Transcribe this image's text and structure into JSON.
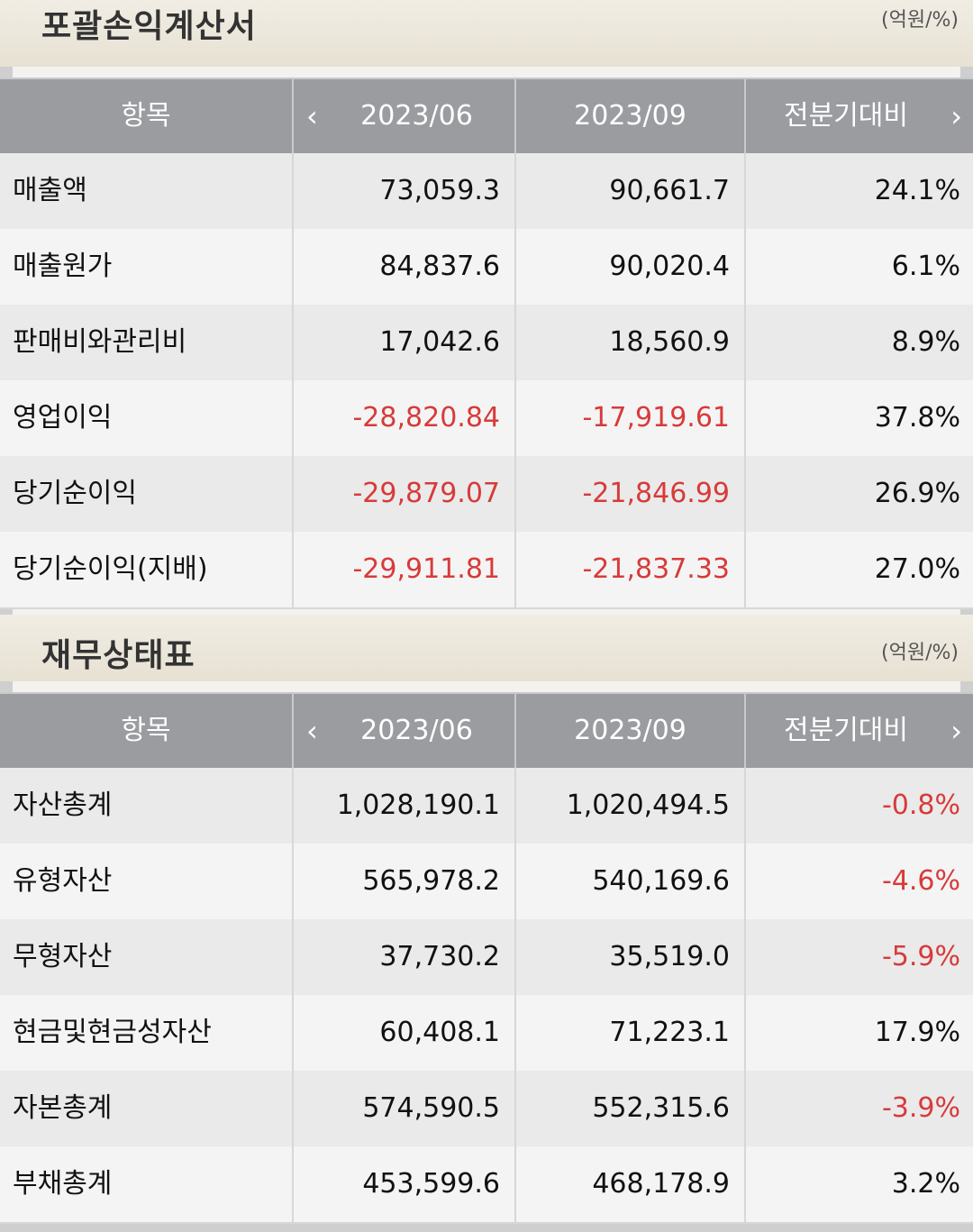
{
  "income_statement": {
    "title": "포괄손익계산서",
    "unit": "(억원/%)",
    "headers": {
      "item": "항목",
      "prev": "2023/06",
      "curr": "2023/09",
      "change": "전분기대비"
    },
    "rows": [
      {
        "item": "매출액",
        "prev": "73,059.3",
        "curr": "90,661.7",
        "change": "24.1%"
      },
      {
        "item": "매출원가",
        "prev": "84,837.6",
        "curr": "90,020.4",
        "change": "6.1%"
      },
      {
        "item": "판매비와관리비",
        "prev": "17,042.6",
        "curr": "18,560.9",
        "change": "8.9%"
      },
      {
        "item": "영업이익",
        "prev": "-28,820.84",
        "curr": "-17,919.61",
        "change": "37.8%"
      },
      {
        "item": "당기순이익",
        "prev": "-29,879.07",
        "curr": "-21,846.99",
        "change": "26.9%"
      },
      {
        "item": "당기순이익(지배)",
        "prev": "-29,911.81",
        "curr": "-21,837.33",
        "change": "27.0%"
      }
    ]
  },
  "balance_sheet": {
    "title": "재무상태표",
    "unit": "(억원/%)",
    "headers": {
      "item": "항목",
      "prev": "2023/06",
      "curr": "2023/09",
      "change": "전분기대비"
    },
    "rows": [
      {
        "item": "자산총계",
        "prev": "1,028,190.1",
        "curr": "1,020,494.5",
        "change": "-0.8%"
      },
      {
        "item": "유형자산",
        "prev": "565,978.2",
        "curr": "540,169.6",
        "change": "-4.6%"
      },
      {
        "item": "무형자산",
        "prev": "37,730.2",
        "curr": "35,519.0",
        "change": "-5.9%"
      },
      {
        "item": "현금및현금성자산",
        "prev": "60,408.1",
        "curr": "71,223.1",
        "change": "17.9%"
      },
      {
        "item": "자본총계",
        "prev": "574,590.5",
        "curr": "552,315.6",
        "change": "-3.9%"
      },
      {
        "item": "부채총계",
        "prev": "453,599.6",
        "curr": "468,178.9",
        "change": "3.2%"
      }
    ]
  },
  "icons": {
    "prev_period": "chevron-left-icon",
    "next_period": "chevron-right-icon"
  },
  "colors": {
    "negative": "#d83a3a",
    "header_bg": "#9a9ca0"
  }
}
